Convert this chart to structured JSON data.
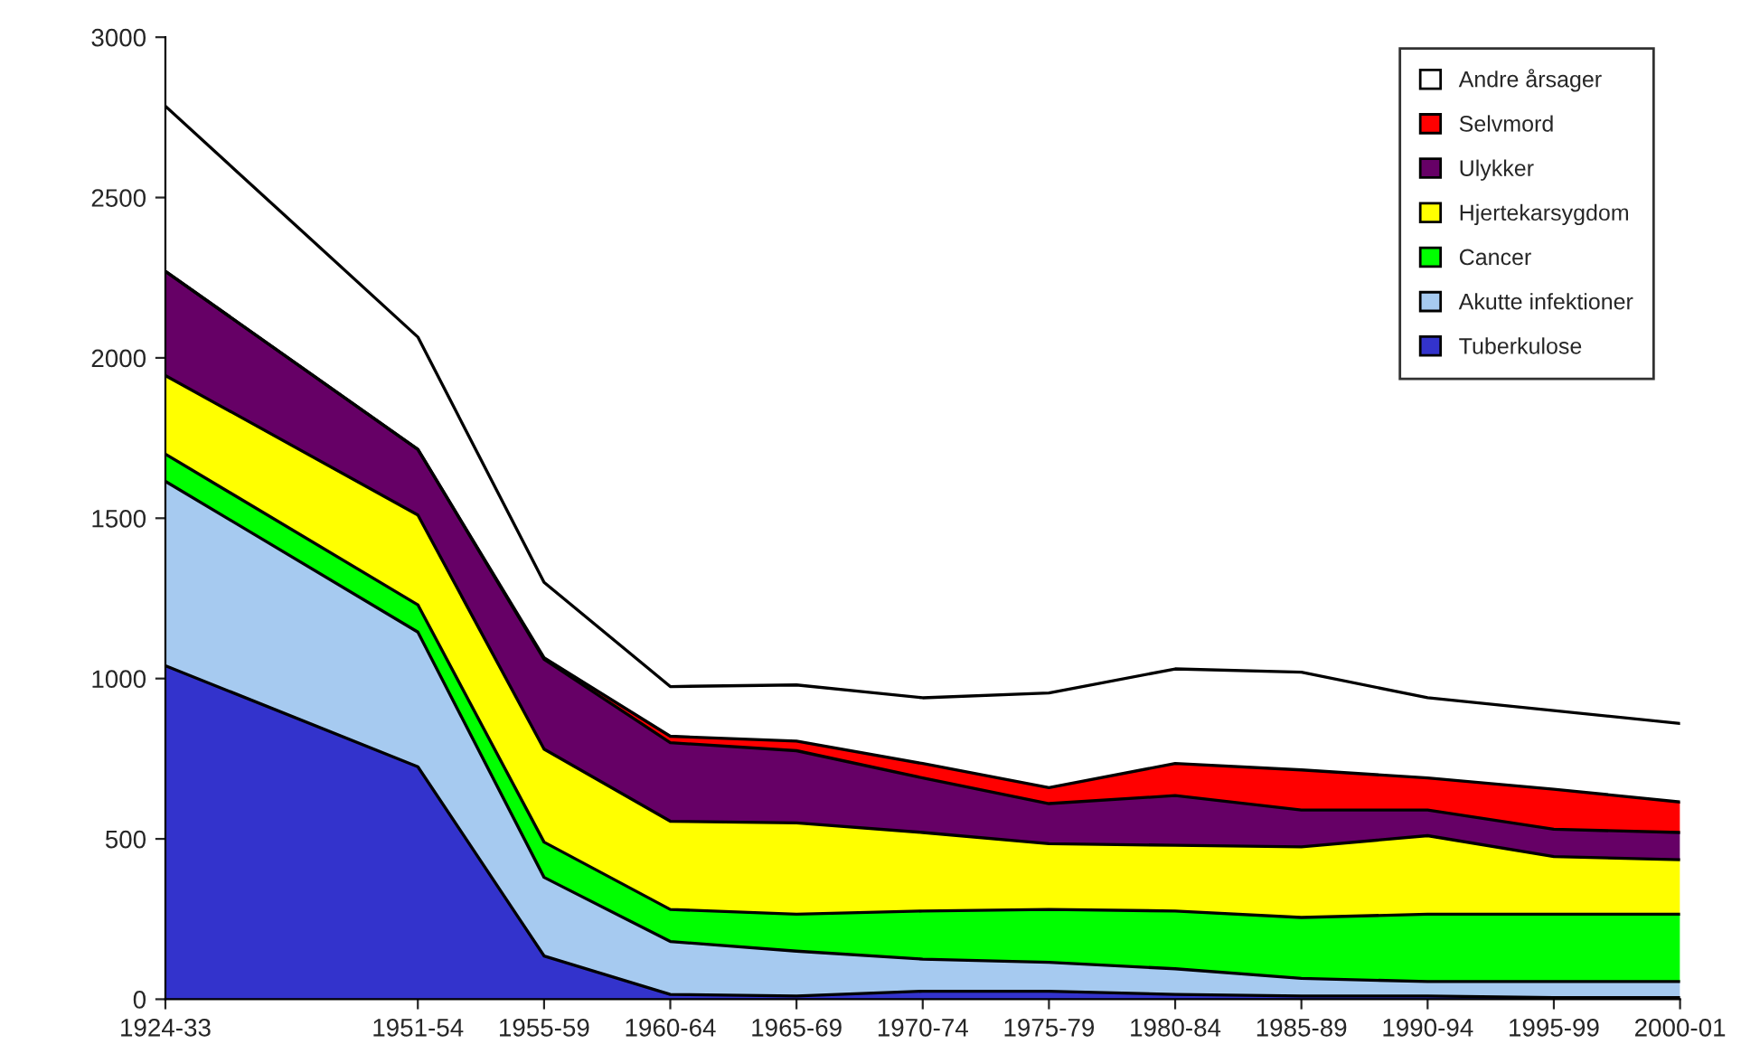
{
  "chart_data": {
    "type": "area",
    "stacked": true,
    "categories": [
      "1924-33",
      null,
      "1951-54",
      "1955-59",
      "1960-64",
      "1965-69",
      "1970-74",
      "1975-79",
      "1980-84",
      "1985-89",
      "1990-94",
      "1995-99",
      "2000-01"
    ],
    "ylim": [
      0,
      3000
    ],
    "yticks": [
      0,
      500,
      1000,
      1500,
      2000,
      2500,
      3000
    ],
    "grid": false,
    "legend": "top right",
    "series": [
      {
        "name": "Tuberkulose",
        "color": "#3333cc",
        "values": [
          1040,
          null,
          725,
          135,
          15,
          10,
          25,
          25,
          15,
          10,
          10,
          5,
          5
        ]
      },
      {
        "name": "Akutte infektioner",
        "color": "#a6caf0",
        "values": [
          575,
          null,
          420,
          245,
          165,
          140,
          100,
          90,
          80,
          55,
          45,
          50,
          50
        ]
      },
      {
        "name": "Cancer",
        "color": "#00ff00",
        "values": [
          85,
          null,
          85,
          110,
          100,
          115,
          150,
          165,
          180,
          190,
          210,
          210,
          210
        ]
      },
      {
        "name": "Hjertekarsygdom",
        "color": "#ffff00",
        "values": [
          245,
          null,
          280,
          290,
          275,
          285,
          245,
          205,
          205,
          220,
          245,
          180,
          170
        ]
      },
      {
        "name": "Ulykker",
        "color": "#660066",
        "values": [
          325,
          null,
          205,
          280,
          245,
          225,
          170,
          125,
          155,
          115,
          80,
          85,
          85
        ]
      },
      {
        "name": "Selvmord",
        "color": "#ff0000",
        "values": [
          0,
          null,
          0,
          5,
          20,
          30,
          45,
          50,
          100,
          125,
          100,
          125,
          95
        ]
      },
      {
        "name": "Andre årsager",
        "color": "#ffffff",
        "values": [
          515,
          null,
          350,
          235,
          155,
          175,
          205,
          295,
          295,
          305,
          250,
          245,
          245
        ]
      }
    ]
  }
}
